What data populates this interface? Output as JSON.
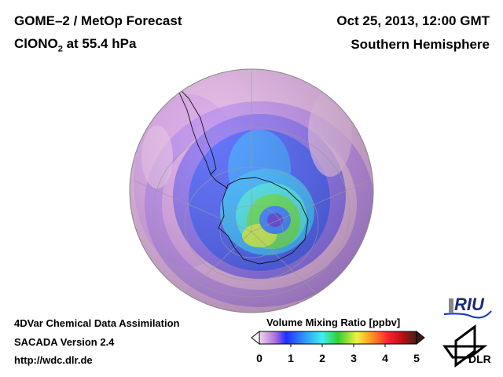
{
  "header": {
    "title_line1": "GOME–2 / MetOp Forecast",
    "species": "ClONO",
    "species_sub": "2",
    "level": " at 55.4 hPa",
    "date": "Oct 25, 2013, 12:00 GMT",
    "region": "Southern Hemisphere"
  },
  "footer": {
    "line1": "4DVar Chemical Data Assimilation",
    "line2": "SACADA Version 2.4",
    "line3": "http://wdc.dlr.de"
  },
  "colorbar": {
    "title": "Volume Mixing Ratio [ppbv]",
    "ticks": [
      "0",
      "1",
      "2",
      "3",
      "4",
      "5"
    ],
    "range": [
      0,
      5
    ],
    "colors": [
      "#f0d8e8",
      "#b070e0",
      "#2030ff",
      "#30a0ff",
      "#40f0f0",
      "#30d030",
      "#f0f040",
      "#ff9020",
      "#ff2030",
      "#b01010",
      "#402020"
    ]
  },
  "logos": {
    "riu": "RIU",
    "dlr": "DLR"
  }
}
